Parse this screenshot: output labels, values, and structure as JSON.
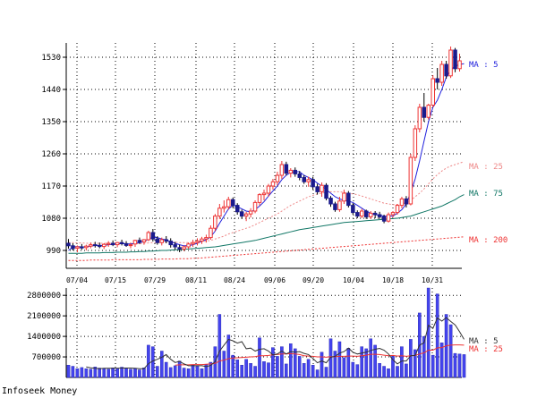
{
  "footer": "Infoseek Money",
  "chart_data": [
    {
      "type": "candlestick",
      "panel": "price",
      "x_tick_labels": [
        "07/04",
        "07/15",
        "07/29",
        "08/11",
        "08/24",
        "09/06",
        "09/20",
        "10/04",
        "10/18",
        "10/31"
      ],
      "y_ticks": [
        990,
        1080,
        1170,
        1260,
        1350,
        1440,
        1530
      ],
      "ylim": [
        940,
        1570
      ],
      "grid": true,
      "ma_labels": [
        {
          "text": "MA : 5",
          "color": "#2222dd",
          "value": 1510
        },
        {
          "text": "MA : 25",
          "color": "#ee8888",
          "value": 1225
        },
        {
          "text": "MA : 75",
          "color": "#117766",
          "value": 1150
        },
        {
          "text": "MA : 200",
          "color": "#ee3333",
          "value": 1020
        }
      ],
      "ohlc": [
        [
          1010,
          1022,
          995,
          1003
        ],
        [
          1003,
          1010,
          990,
          995
        ],
        [
          996,
          1004,
          985,
          1000
        ],
        [
          1000,
          1008,
          992,
          997
        ],
        [
          998,
          1006,
          990,
          1002
        ],
        [
          1002,
          1012,
          996,
          1006
        ],
        [
          1006,
          1014,
          998,
          1004
        ],
        [
          1004,
          1012,
          996,
          1001
        ],
        [
          1001,
          1010,
          994,
          1007
        ],
        [
          1007,
          1016,
          1000,
          1010
        ],
        [
          1010,
          1018,
          1002,
          1006
        ],
        [
          1006,
          1014,
          999,
          1012
        ],
        [
          1012,
          1020,
          1004,
          1009
        ],
        [
          1009,
          1016,
          1000,
          1004
        ],
        [
          1004,
          1012,
          996,
          1006
        ],
        [
          1008,
          1020,
          1000,
          1018
        ],
        [
          1018,
          1026,
          1008,
          1014
        ],
        [
          1014,
          1022,
          1006,
          1020
        ],
        [
          1020,
          1045,
          1016,
          1040
        ],
        [
          1040,
          1050,
          1015,
          1022
        ],
        [
          1022,
          1030,
          1006,
          1012
        ],
        [
          1012,
          1026,
          1004,
          1020
        ],
        [
          1020,
          1030,
          1010,
          1016
        ],
        [
          1016,
          1024,
          998,
          1006
        ],
        [
          1006,
          1014,
          992,
          1000
        ],
        [
          998,
          1006,
          985,
          994
        ],
        [
          994,
          1004,
          988,
          1000
        ],
        [
          1000,
          1012,
          994,
          1008
        ],
        [
          1008,
          1020,
          1000,
          1012
        ],
        [
          1012,
          1024,
          1004,
          1016
        ],
        [
          1016,
          1028,
          1008,
          1022
        ],
        [
          1022,
          1034,
          1012,
          1026
        ],
        [
          1026,
          1060,
          1020,
          1052
        ],
        [
          1052,
          1092,
          1044,
          1086
        ],
        [
          1086,
          1120,
          1078,
          1108
        ],
        [
          1108,
          1130,
          1096,
          1112
        ],
        [
          1112,
          1140,
          1104,
          1132
        ],
        [
          1132,
          1138,
          1108,
          1116
        ],
        [
          1116,
          1122,
          1090,
          1098
        ],
        [
          1098,
          1104,
          1078,
          1086
        ],
        [
          1086,
          1098,
          1072,
          1092
        ],
        [
          1092,
          1108,
          1082,
          1100
        ],
        [
          1100,
          1130,
          1094,
          1124
        ],
        [
          1124,
          1150,
          1116,
          1146
        ],
        [
          1146,
          1160,
          1130,
          1150
        ],
        [
          1150,
          1176,
          1140,
          1170
        ],
        [
          1170,
          1190,
          1160,
          1182
        ],
        [
          1182,
          1210,
          1172,
          1200
        ],
        [
          1200,
          1240,
          1190,
          1230
        ],
        [
          1230,
          1238,
          1200,
          1206
        ],
        [
          1206,
          1220,
          1194,
          1214
        ],
        [
          1214,
          1222,
          1196,
          1204
        ],
        [
          1204,
          1212,
          1186,
          1194
        ],
        [
          1194,
          1200,
          1176,
          1182
        ],
        [
          1182,
          1196,
          1168,
          1188
        ],
        [
          1188,
          1196,
          1160,
          1168
        ],
        [
          1168,
          1176,
          1146,
          1154
        ],
        [
          1154,
          1180,
          1140,
          1172
        ],
        [
          1172,
          1178,
          1130,
          1136
        ],
        [
          1136,
          1142,
          1112,
          1120
        ],
        [
          1120,
          1126,
          1098,
          1104
        ],
        [
          1104,
          1140,
          1098,
          1128
        ],
        [
          1128,
          1160,
          1120,
          1150
        ],
        [
          1150,
          1156,
          1110,
          1116
        ],
        [
          1116,
          1122,
          1090,
          1096
        ],
        [
          1096,
          1102,
          1080,
          1086
        ],
        [
          1086,
          1106,
          1080,
          1100
        ],
        [
          1100,
          1104,
          1078,
          1084
        ],
        [
          1084,
          1100,
          1078,
          1094
        ],
        [
          1094,
          1100,
          1080,
          1090
        ],
        [
          1090,
          1098,
          1078,
          1084
        ],
        [
          1084,
          1090,
          1066,
          1072
        ],
        [
          1072,
          1096,
          1068,
          1090
        ],
        [
          1090,
          1100,
          1082,
          1096
        ],
        [
          1096,
          1120,
          1090,
          1116
        ],
        [
          1116,
          1140,
          1108,
          1134
        ],
        [
          1134,
          1142,
          1110,
          1120
        ],
        [
          1120,
          1260,
          1116,
          1250
        ],
        [
          1250,
          1340,
          1240,
          1330
        ],
        [
          1330,
          1400,
          1320,
          1390
        ],
        [
          1390,
          1430,
          1350,
          1362
        ],
        [
          1362,
          1400,
          1356,
          1396
        ],
        [
          1396,
          1480,
          1390,
          1470
        ],
        [
          1470,
          1500,
          1440,
          1460
        ],
        [
          1460,
          1520,
          1450,
          1510
        ],
        [
          1510,
          1520,
          1470,
          1478
        ],
        [
          1478,
          1560,
          1472,
          1550
        ],
        [
          1550,
          1556,
          1488,
          1498
        ],
        [
          1498,
          1540,
          1490,
          1520
        ]
      ],
      "ma_series": {
        "ma5": [
          990,
          1000,
          1001,
          1000,
          1000,
          1002,
          1004,
          1004,
          1004,
          1006,
          1007,
          1008,
          1009,
          1008,
          1008,
          1010,
          1012,
          1014,
          1022,
          1027,
          1026,
          1022,
          1020,
          1014,
          1010,
          1006,
          1003,
          1003,
          1006,
          1010,
          1016,
          1020,
          1028,
          1044,
          1066,
          1086,
          1106,
          1116,
          1112,
          1106,
          1100,
          1098,
          1104,
          1114,
          1126,
          1142,
          1156,
          1170,
          1188,
          1200,
          1208,
          1210,
          1210,
          1200,
          1194,
          1188,
          1178,
          1170,
          1160,
          1150,
          1140,
          1134,
          1130,
          1128,
          1124,
          1116,
          1108,
          1100,
          1094,
          1090,
          1088,
          1086,
          1086,
          1086,
          1094,
          1104,
          1120,
          1152,
          1190,
          1240,
          1296,
          1350,
          1390,
          1410,
          1440,
          1474,
          1495,
          1505,
          1510,
          1512
        ],
        "ma25": [
          1012,
          1012,
          1011,
          1011,
          1010,
          1010,
          1010,
          1010,
          1010,
          1010,
          1010,
          1010,
          1010,
          1009,
          1009,
          1009,
          1009,
          1010,
          1011,
          1012,
          1012,
          1012,
          1013,
          1013,
          1013,
          1012,
          1012,
          1012,
          1012,
          1013,
          1014,
          1016,
          1018,
          1022,
          1026,
          1030,
          1036,
          1040,
          1044,
          1048,
          1052,
          1056,
          1062,
          1068,
          1074,
          1080,
          1086,
          1092,
          1100,
          1108,
          1116,
          1122,
          1128,
          1134,
          1140,
          1144,
          1148,
          1150,
          1152,
          1154,
          1154,
          1154,
          1152,
          1150,
          1148,
          1146,
          1142,
          1138,
          1134,
          1130,
          1126,
          1122,
          1120,
          1118,
          1118,
          1120,
          1124,
          1130,
          1140,
          1150,
          1162,
          1176,
          1190,
          1202,
          1212,
          1220,
          1226,
          1230,
          1234,
          1238
        ],
        "ma75": [
          982,
          982,
          982,
          982,
          983,
          983,
          983,
          983,
          984,
          984,
          984,
          985,
          985,
          985,
          986,
          986,
          987,
          987,
          988,
          988,
          989,
          990,
          990,
          991,
          992,
          992,
          993,
          994,
          995,
          996,
          997,
          998,
          999,
          1000,
          1002,
          1004,
          1006,
          1008,
          1010,
          1012,
          1014,
          1016,
          1018,
          1021,
          1024,
          1027,
          1030,
          1033,
          1036,
          1039,
          1042,
          1045,
          1048,
          1050,
          1052,
          1054,
          1056,
          1058,
          1060,
          1062,
          1064,
          1066,
          1068,
          1069,
          1070,
          1071,
          1072,
          1073,
          1074,
          1075,
          1076,
          1077,
          1078,
          1079,
          1080,
          1082,
          1084,
          1086,
          1090,
          1094,
          1098,
          1102,
          1106,
          1110,
          1114,
          1120,
          1126,
          1132,
          1140,
          1146
        ],
        "ma200": [
          962,
          962,
          962,
          962,
          962,
          963,
          963,
          963,
          963,
          963,
          964,
          964,
          964,
          964,
          964,
          964,
          964,
          965,
          965,
          965,
          965,
          966,
          966,
          966,
          966,
          967,
          967,
          967,
          968,
          968,
          969,
          970,
          971,
          972,
          973,
          974,
          975,
          976,
          977,
          978,
          979,
          980,
          981,
          982,
          983,
          984,
          985,
          986,
          987,
          988,
          989,
          990,
          991,
          992,
          993,
          994,
          995,
          996,
          997,
          998,
          999,
          1000,
          1001,
          1002,
          1003,
          1004,
          1005,
          1006,
          1007,
          1008,
          1009,
          1010,
          1011,
          1012,
          1013,
          1014,
          1015,
          1016,
          1017,
          1018,
          1019,
          1020,
          1021,
          1022,
          1023,
          1024,
          1025,
          1026,
          1027,
          1028
        ]
      }
    },
    {
      "type": "bar",
      "panel": "volume",
      "y_ticks": [
        700000,
        1400000,
        2100000,
        2800000
      ],
      "ylim": [
        0,
        3050000
      ],
      "ma_labels": [
        {
          "text": "MA : 5",
          "color": "#333333"
        },
        {
          "text": "MA : 25",
          "color": "#ee3333"
        }
      ],
      "values": [
        420000,
        380000,
        300000,
        340000,
        300000,
        280000,
        360000,
        320000,
        300000,
        280000,
        330000,
        300000,
        350000,
        320000,
        280000,
        300000,
        260000,
        330000,
        1100000,
        1050000,
        380000,
        900000,
        520000,
        340000,
        400000,
        560000,
        320000,
        300000,
        420000,
        380000,
        300000,
        440000,
        520000,
        1050000,
        2150000,
        900000,
        1450000,
        760000,
        600000,
        420000,
        620000,
        480000,
        380000,
        1350000,
        540000,
        500000,
        1020000,
        720000,
        1050000,
        460000,
        1150000,
        980000,
        720000,
        480000,
        620000,
        420000,
        260000,
        860000,
        350000,
        1320000,
        900000,
        1220000,
        680000,
        1000000,
        520000,
        440000,
        1050000,
        980000,
        1320000,
        1100000,
        480000,
        380000,
        300000,
        720000,
        380000,
        1050000,
        460000,
        1300000,
        950000,
        2200000,
        1400000,
        3050000,
        760000,
        2850000,
        1180000,
        2150000,
        1800000,
        820000,
        800000,
        780000
      ],
      "ma5": [
        null,
        null,
        null,
        null,
        360000,
        330000,
        310000,
        300000,
        310000,
        310000,
        310000,
        310000,
        320000,
        320000,
        320000,
        310000,
        300000,
        300000,
        470000,
        560000,
        620000,
        690000,
        780000,
        620000,
        510000,
        550000,
        460000,
        400000,
        400000,
        400000,
        400000,
        370000,
        410000,
        540000,
        900000,
        1100000,
        1300000,
        1250000,
        1170000,
        1220000,
        980000,
        1000000,
        900000,
        960000,
        980000,
        900000,
        770000,
        800000,
        900000,
        800000,
        880000,
        860000,
        880000,
        820000,
        780000,
        650000,
        500000,
        560000,
        500000,
        690000,
        720000,
        830000,
        880000,
        1000000,
        860000,
        800000,
        830000,
        860000,
        920000,
        960000,
        990000,
        930000,
        800000,
        600000,
        460000,
        560000,
        560000,
        740000,
        750000,
        1100000,
        1180000,
        1780000,
        1670000,
        2030000,
        1920000,
        2040000,
        1910000,
        1790000,
        1560000,
        1300000
      ],
      "ma25": [
        null,
        null,
        null,
        null,
        null,
        null,
        null,
        null,
        null,
        null,
        null,
        null,
        null,
        null,
        null,
        null,
        null,
        null,
        null,
        null,
        null,
        null,
        null,
        null,
        420000,
        430000,
        430000,
        430000,
        440000,
        440000,
        440000,
        450000,
        460000,
        480000,
        560000,
        590000,
        640000,
        660000,
        670000,
        680000,
        690000,
        700000,
        710000,
        740000,
        740000,
        750000,
        770000,
        780000,
        800000,
        800000,
        810000,
        800000,
        780000,
        740000,
        730000,
        720000,
        700000,
        700000,
        690000,
        710000,
        710000,
        720000,
        720000,
        730000,
        730000,
        720000,
        740000,
        760000,
        790000,
        790000,
        780000,
        760000,
        740000,
        750000,
        730000,
        740000,
        720000,
        740000,
        750000,
        800000,
        840000,
        930000,
        930000,
        1010000,
        1020000,
        1080000,
        1100000,
        1110000,
        1110000,
        1100000
      ]
    }
  ]
}
